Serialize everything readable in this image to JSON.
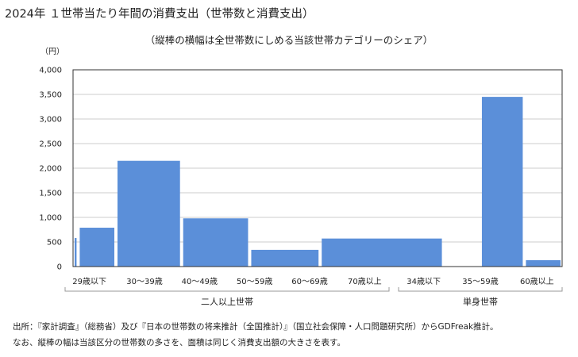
{
  "title": "2024年 １世帯当たり年間の消費支出（世帯数と消費支出）",
  "subtitle": "（縦棒の横幅は全世帯数にしめる当該世帯カテゴリーのシェア）",
  "notes": [
    "出所：『家計調査』（総務省）及び『日本の世帯数の将来推計（全国推計）』（国立社会保障・人口問題研究所）からGDFreak推計。",
    "なお、縦棒の幅は当該区分の世帯数の多さを、面積は同じく消費支出額の大きさを表す。"
  ],
  "colors": {
    "bar": "#5b8fd9",
    "axis": "#333333",
    "grid": "#cccccc"
  },
  "chart_data": {
    "type": "bar",
    "variable_width": true,
    "ylabel": "（円）",
    "ylim": [
      0,
      4000
    ],
    "y_ticks": [
      "0",
      "500",
      "1,000",
      "1,500",
      "2,000",
      "2,500",
      "3,000",
      "3,500",
      "4,000"
    ],
    "y_tick_values": [
      0,
      500,
      1000,
      1500,
      2000,
      2500,
      3000,
      3500,
      4000
    ],
    "grid": true,
    "groups": [
      {
        "label": "二人以上世帯",
        "categories": [
          "29歳以下",
          "30～39歳",
          "40～49歳",
          "50～59歳",
          "60～69歳",
          "70歳以上"
        ]
      },
      {
        "label": "単身世帯",
        "categories": [
          "34歳以下",
          "35～59歳",
          "60歳以上"
        ]
      }
    ],
    "categories": [
      "29歳以下",
      "30～39歳",
      "40～49歳",
      "50～59歳",
      "60～69歳",
      "70歳以上",
      "34歳以下",
      "35～59歳",
      "60歳以上"
    ],
    "values": [
      580,
      790,
      2150,
      980,
      340,
      570,
      0,
      3450,
      130
    ],
    "width_share": [
      0.4,
      7.2,
      13,
      13.5,
      14,
      25,
      7,
      8.5,
      7.2
    ]
  }
}
